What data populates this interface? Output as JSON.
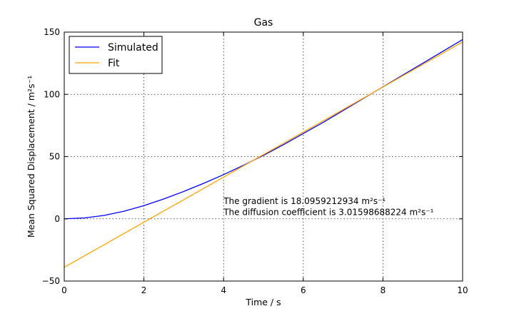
{
  "chart_data": {
    "type": "line",
    "title": "Gas",
    "xlabel": "Time / s",
    "ylabel": "Mean Squared Displacement / m²s⁻¹",
    "xlim": [
      0,
      10
    ],
    "ylim": [
      -50,
      150
    ],
    "xticks": [
      "0",
      "2",
      "4",
      "6",
      "8",
      "10"
    ],
    "yticks": [
      "−50",
      "0",
      "50",
      "100",
      "150"
    ],
    "grid": true,
    "legend_position": "top-left",
    "series": [
      {
        "name": "Simulated",
        "color": "#0000ff",
        "x": [
          0,
          0.5,
          1,
          1.5,
          2,
          2.5,
          3,
          3.5,
          4,
          4.5,
          5,
          5.5,
          6,
          6.5,
          7,
          7.5,
          8,
          8.5,
          9,
          9.5,
          10
        ],
        "y": [
          0,
          0.7,
          2.7,
          6.1,
          10.6,
          16.0,
          22.0,
          28.5,
          35.5,
          43.0,
          51.0,
          59.5,
          68.5,
          77.5,
          87.0,
          96.5,
          106.0,
          115.5,
          125.0,
          134.5,
          144.0
        ]
      },
      {
        "name": "Fit",
        "color": "#ffa500",
        "x": [
          0,
          10
        ],
        "y": [
          -38.9,
          142.06
        ]
      }
    ],
    "annotations": [
      {
        "x": 4,
        "y": 12,
        "text": "The gradient is 18.0959212934 m²s⁻¹"
      },
      {
        "x": 4,
        "y": 3,
        "text": "The diffusion coefficient is 3.01598688224 m²s⁻¹"
      }
    ]
  }
}
